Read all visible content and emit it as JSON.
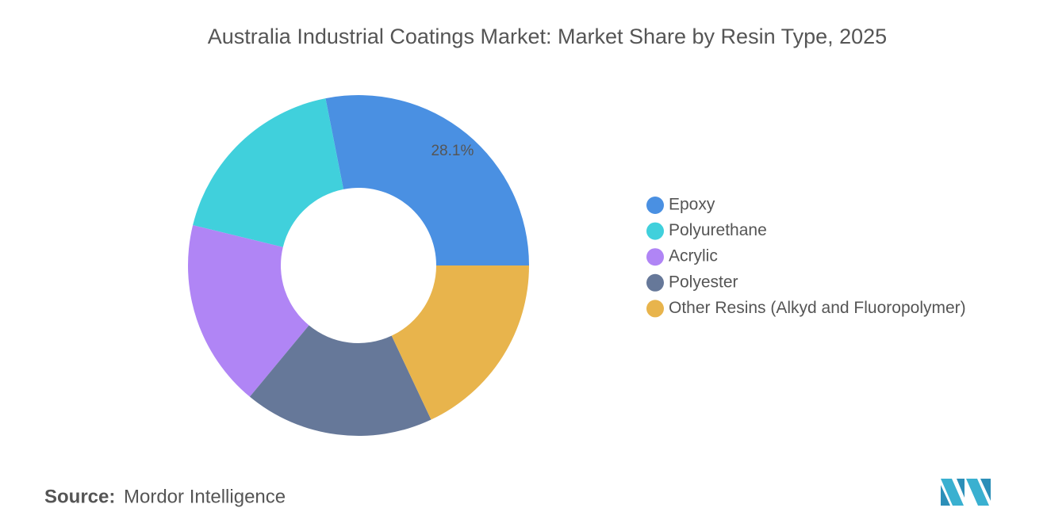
{
  "chart_data": {
    "type": "donut",
    "title": "Australia Industrial Coatings Market: Market Share by Resin Type, 2025",
    "categories": [
      "Epoxy",
      "Polyurethane",
      "Acrylic",
      "Polyester",
      "Other Resins (Alkyd and Fluoropolymer)"
    ],
    "values": [
      28.1,
      18.1,
      17.8,
      18,
      18
    ],
    "value_labels": [
      "28.1%",
      null,
      null,
      null,
      null
    ],
    "colors": [
      "#4a90e2",
      "#40d0dc",
      "#b085f5",
      "#667899",
      "#e8b44c"
    ],
    "legend": "right"
  },
  "footer": {
    "source_label": "Source:",
    "source": "Mordor Intelligence"
  }
}
